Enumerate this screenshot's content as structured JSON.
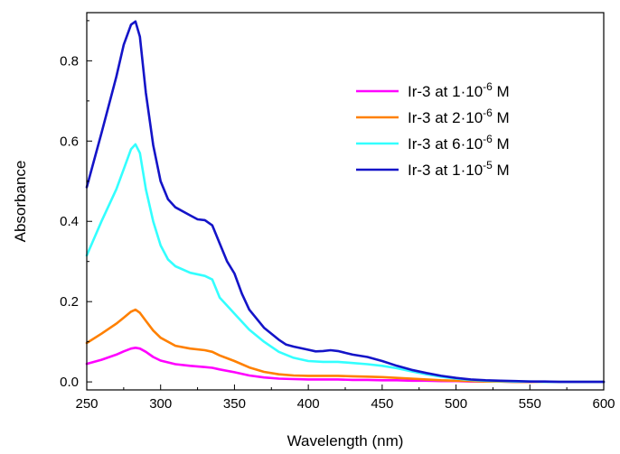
{
  "chart_data": {
    "type": "line",
    "title": "",
    "xlabel": "Wavelength (nm)",
    "ylabel": "Absorbance",
    "xlim": [
      250,
      600
    ],
    "ylim": [
      -0.02,
      0.92
    ],
    "x_ticks": [
      250,
      300,
      350,
      400,
      450,
      500,
      550,
      600
    ],
    "y_ticks": [
      0.0,
      0.2,
      0.4,
      0.6,
      0.8
    ],
    "x_tick_labels": [
      "250",
      "300",
      "350",
      "400",
      "450",
      "500",
      "550",
      "600"
    ],
    "y_tick_labels": [
      "0.0",
      "0.2",
      "0.4",
      "0.6",
      "0.8"
    ],
    "grid": false,
    "legend_position": "top-right",
    "series": [
      {
        "name": "Ir-3 at 1·10-6 M",
        "label_main": "Ir-3 at 1·10",
        "label_exp": "-6",
        "label_unit": " M",
        "color": "#ff00ff",
        "x": [
          250,
          260,
          270,
          275,
          280,
          283,
          286,
          290,
          295,
          300,
          310,
          320,
          330,
          335,
          340,
          350,
          360,
          370,
          380,
          390,
          400,
          410,
          420,
          430,
          440,
          450,
          460,
          470,
          480,
          490,
          500,
          510,
          520,
          530,
          540,
          550,
          560,
          570,
          580,
          590,
          600
        ],
        "y": [
          0.045,
          0.055,
          0.068,
          0.076,
          0.083,
          0.085,
          0.083,
          0.075,
          0.062,
          0.053,
          0.044,
          0.04,
          0.037,
          0.035,
          0.031,
          0.024,
          0.016,
          0.011,
          0.008,
          0.007,
          0.006,
          0.006,
          0.006,
          0.005,
          0.005,
          0.004,
          0.004,
          0.003,
          0.003,
          0.002,
          0.002,
          0.001,
          0.001,
          0.001,
          0.0,
          0.0,
          0.0,
          0.0,
          0.0,
          0.0,
          0.0
        ]
      },
      {
        "name": "Ir-3 at 2·10-6 M",
        "label_main": "Ir-3 at 2·10",
        "label_exp": "-6",
        "label_unit": " M",
        "color": "#ff8000",
        "x": [
          250,
          260,
          270,
          275,
          280,
          283,
          286,
          290,
          295,
          300,
          310,
          320,
          330,
          335,
          340,
          350,
          360,
          370,
          380,
          390,
          400,
          410,
          420,
          430,
          440,
          450,
          460,
          470,
          480,
          490,
          500,
          510,
          520,
          530,
          540,
          550,
          560,
          570,
          580,
          590,
          600
        ],
        "y": [
          0.097,
          0.12,
          0.145,
          0.16,
          0.175,
          0.18,
          0.172,
          0.152,
          0.128,
          0.11,
          0.09,
          0.083,
          0.079,
          0.075,
          0.066,
          0.052,
          0.036,
          0.025,
          0.019,
          0.016,
          0.015,
          0.015,
          0.015,
          0.014,
          0.013,
          0.012,
          0.01,
          0.008,
          0.006,
          0.004,
          0.003,
          0.002,
          0.001,
          0.001,
          0.0,
          0.0,
          0.0,
          0.0,
          0.0,
          0.0,
          0.0
        ]
      },
      {
        "name": "Ir-3 at 6·10-6 M",
        "label_main": "Ir-3 at 6·10",
        "label_exp": "-6",
        "label_unit": " M",
        "color": "#33ffff",
        "x": [
          250,
          260,
          270,
          275,
          280,
          283,
          286,
          290,
          295,
          300,
          305,
          310,
          320,
          330,
          335,
          340,
          350,
          360,
          370,
          380,
          390,
          400,
          410,
          420,
          430,
          440,
          450,
          460,
          470,
          480,
          490,
          500,
          510,
          520,
          530,
          540,
          550,
          560,
          570,
          580,
          590,
          600
        ],
        "y": [
          0.315,
          0.4,
          0.48,
          0.53,
          0.58,
          0.592,
          0.57,
          0.48,
          0.4,
          0.34,
          0.305,
          0.288,
          0.272,
          0.264,
          0.255,
          0.21,
          0.17,
          0.13,
          0.1,
          0.075,
          0.06,
          0.052,
          0.05,
          0.05,
          0.047,
          0.044,
          0.04,
          0.034,
          0.026,
          0.019,
          0.013,
          0.008,
          0.005,
          0.003,
          0.002,
          0.001,
          0.001,
          0.0,
          0.0,
          0.0,
          0.0,
          0.0
        ]
      },
      {
        "name": "Ir-3 at 1·10-5 M",
        "label_main": "Ir-3 at 1·10",
        "label_exp": "-5",
        "label_unit": " M",
        "color": "#1414c8",
        "x": [
          250,
          260,
          270,
          275,
          280,
          283,
          286,
          290,
          295,
          300,
          305,
          310,
          320,
          325,
          330,
          335,
          340,
          345,
          350,
          355,
          360,
          370,
          380,
          385,
          390,
          400,
          405,
          410,
          415,
          420,
          430,
          440,
          450,
          460,
          470,
          480,
          490,
          500,
          510,
          520,
          530,
          540,
          550,
          560,
          570,
          580,
          590,
          600
        ],
        "y": [
          0.485,
          0.62,
          0.76,
          0.84,
          0.89,
          0.898,
          0.86,
          0.72,
          0.59,
          0.5,
          0.455,
          0.435,
          0.415,
          0.405,
          0.403,
          0.39,
          0.345,
          0.3,
          0.27,
          0.22,
          0.18,
          0.135,
          0.105,
          0.093,
          0.088,
          0.08,
          0.076,
          0.077,
          0.079,
          0.077,
          0.068,
          0.062,
          0.052,
          0.04,
          0.03,
          0.022,
          0.015,
          0.01,
          0.006,
          0.004,
          0.003,
          0.002,
          0.001,
          0.001,
          0.0,
          0.0,
          0.0,
          0.0
        ]
      }
    ]
  }
}
